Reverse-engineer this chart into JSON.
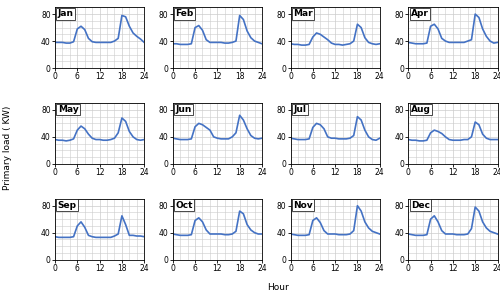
{
  "months": [
    "Jan",
    "Feb",
    "Mar",
    "Apr",
    "May",
    "Jun",
    "Jul",
    "Aug",
    "Sep",
    "Oct",
    "Nov",
    "Dec"
  ],
  "line_color": "#4472C4",
  "ylabel": "Primary load ( KW)",
  "xlabel": "Hour",
  "ylim": [
    0,
    90
  ],
  "yticks": [
    0,
    40,
    80
  ],
  "xticks": [
    0,
    6,
    12,
    18,
    24
  ],
  "x_minor_every": 2,
  "y_minor_every": 10,
  "profiles": {
    "Jan": [
      38,
      38,
      38,
      37,
      37,
      39,
      58,
      62,
      57,
      44,
      39,
      38,
      38,
      38,
      38,
      38,
      40,
      44,
      78,
      76,
      62,
      52,
      47,
      43
    ],
    "Feb": [
      36,
      36,
      35,
      35,
      35,
      36,
      60,
      63,
      56,
      42,
      38,
      38,
      38,
      38,
      37,
      37,
      38,
      40,
      78,
      72,
      55,
      45,
      40,
      38
    ],
    "Mar": [
      36,
      35,
      35,
      34,
      34,
      35,
      46,
      52,
      50,
      46,
      42,
      37,
      35,
      35,
      34,
      35,
      36,
      40,
      65,
      60,
      45,
      38,
      36,
      35
    ],
    "Apr": [
      38,
      37,
      36,
      36,
      36,
      37,
      62,
      65,
      58,
      44,
      40,
      38,
      38,
      38,
      38,
      38,
      40,
      42,
      80,
      75,
      58,
      47,
      40,
      37
    ],
    "May": [
      36,
      35,
      35,
      34,
      35,
      37,
      50,
      56,
      52,
      44,
      38,
      36,
      36,
      35,
      35,
      36,
      38,
      46,
      68,
      63,
      48,
      40,
      36,
      35
    ],
    "Jun": [
      38,
      37,
      36,
      36,
      36,
      37,
      55,
      60,
      58,
      54,
      50,
      40,
      38,
      37,
      37,
      37,
      40,
      46,
      72,
      65,
      52,
      42,
      38,
      37
    ],
    "Jul": [
      38,
      37,
      36,
      36,
      36,
      37,
      54,
      60,
      58,
      52,
      40,
      38,
      38,
      37,
      37,
      37,
      38,
      42,
      70,
      65,
      50,
      40,
      36,
      35
    ],
    "Aug": [
      36,
      35,
      35,
      34,
      34,
      35,
      46,
      50,
      48,
      45,
      40,
      36,
      35,
      35,
      35,
      36,
      36,
      40,
      62,
      58,
      44,
      38,
      36,
      36
    ],
    "Sep": [
      34,
      33,
      33,
      33,
      33,
      34,
      50,
      56,
      48,
      36,
      34,
      33,
      33,
      33,
      33,
      33,
      35,
      38,
      65,
      52,
      36,
      36,
      35,
      35
    ],
    "Oct": [
      38,
      37,
      36,
      36,
      36,
      37,
      58,
      62,
      56,
      44,
      38,
      38,
      38,
      38,
      37,
      37,
      38,
      42,
      72,
      68,
      52,
      44,
      40,
      38
    ],
    "Nov": [
      38,
      37,
      36,
      36,
      36,
      37,
      58,
      62,
      55,
      43,
      38,
      38,
      38,
      37,
      37,
      37,
      38,
      43,
      80,
      72,
      56,
      47,
      42,
      40
    ],
    "Dec": [
      38,
      37,
      36,
      36,
      36,
      37,
      60,
      65,
      56,
      43,
      38,
      38,
      38,
      37,
      37,
      37,
      38,
      46,
      78,
      72,
      56,
      47,
      42,
      40
    ]
  },
  "line_width": 1.2,
  "background_color": "#ffffff",
  "grid_color": "#cccccc",
  "label_fontsize": 6.5,
  "title_fontsize": 6.5,
  "tick_fontsize": 5.5
}
